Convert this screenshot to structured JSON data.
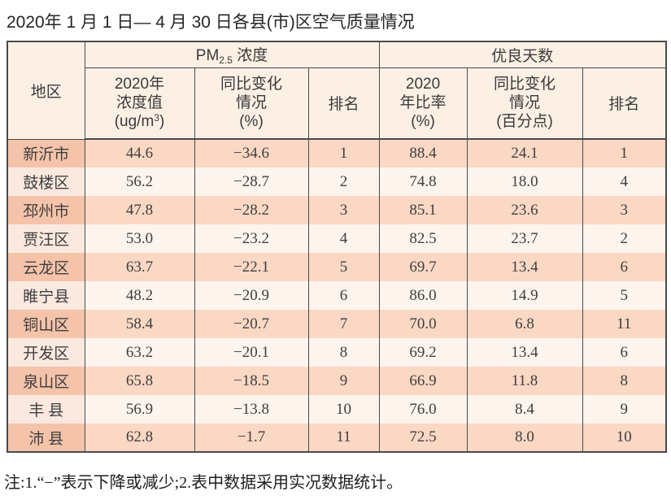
{
  "page": {
    "title": "2020年 1 月 1 日— 4 月 30 日各县(市)区空气质量情况",
    "note": "注:1.“−”表示下降或减少;2.表中数据采用实况数据统计。"
  },
  "table": {
    "region_header": "地区",
    "group_headers": {
      "pm25_prefix": "PM",
      "pm25_sub": "2.5",
      "pm25_suffix": " 浓度",
      "good_days": "优良天数"
    },
    "sub_headers": {
      "pm_value": {
        "line1": "2020年",
        "line2": "浓度值",
        "line3_pre": "(ug/m",
        "line3_sup": "3",
        "line3_post": ")"
      },
      "pm_change": {
        "line1": "同比变化",
        "line2": "情况",
        "line3": "(%)"
      },
      "pm_rank": "排名",
      "good_rate": {
        "line1": "2020",
        "line2": "年比率",
        "line3": "(%)"
      },
      "good_change": {
        "line1": "同比变化",
        "line2": "情况",
        "line3": "(百分点)"
      },
      "good_rank": "排名"
    },
    "rows": [
      {
        "region": "新沂市",
        "pm_value": "44.6",
        "pm_change": "−34.6",
        "pm_rank": "1",
        "good_rate": "88.4",
        "good_change": "24.1",
        "good_rank": "1"
      },
      {
        "region": "鼓楼区",
        "pm_value": "56.2",
        "pm_change": "−28.7",
        "pm_rank": "2",
        "good_rate": "74.8",
        "good_change": "18.0",
        "good_rank": "4"
      },
      {
        "region": "邳州市",
        "pm_value": "47.8",
        "pm_change": "−28.2",
        "pm_rank": "3",
        "good_rate": "85.1",
        "good_change": "23.6",
        "good_rank": "3"
      },
      {
        "region": "贾汪区",
        "pm_value": "53.0",
        "pm_change": "−23.2",
        "pm_rank": "4",
        "good_rate": "82.5",
        "good_change": "23.7",
        "good_rank": "2"
      },
      {
        "region": "云龙区",
        "pm_value": "63.7",
        "pm_change": "−22.1",
        "pm_rank": "5",
        "good_rate": "69.7",
        "good_change": "13.4",
        "good_rank": "6"
      },
      {
        "region": "睢宁县",
        "pm_value": "48.2",
        "pm_change": "−20.9",
        "pm_rank": "6",
        "good_rate": "86.0",
        "good_change": "14.9",
        "good_rank": "5"
      },
      {
        "region": "铜山区",
        "pm_value": "58.4",
        "pm_change": "−20.7",
        "pm_rank": "7",
        "good_rate": "70.0",
        "good_change": "6.8",
        "good_rank": "11"
      },
      {
        "region": "开发区",
        "pm_value": "63.2",
        "pm_change": "−20.1",
        "pm_rank": "8",
        "good_rate": "69.2",
        "good_change": "13.4",
        "good_rank": "6"
      },
      {
        "region": "泉山区",
        "pm_value": "65.8",
        "pm_change": "−18.5",
        "pm_rank": "9",
        "good_rate": "66.9",
        "good_change": "11.8",
        "good_rank": "8"
      },
      {
        "region": "丰 县",
        "pm_value": "56.9",
        "pm_change": "−13.8",
        "pm_rank": "10",
        "good_rate": "76.0",
        "good_change": "8.4",
        "good_rank": "9"
      },
      {
        "region": "沛 县",
        "pm_value": "62.8",
        "pm_change": "−1.7",
        "pm_rank": "11",
        "good_rate": "72.5",
        "good_change": "8.0",
        "good_rank": "10"
      }
    ]
  },
  "colors": {
    "border": "#4a4a4a",
    "header_bg": "#fcf0e5",
    "row_odd_region_bg": "#f5c3a9",
    "row_even_region_bg": "#fbe9df",
    "row_odd_data_bg": "#fad8c4",
    "row_even_data_bg": "#fdf4ee"
  }
}
